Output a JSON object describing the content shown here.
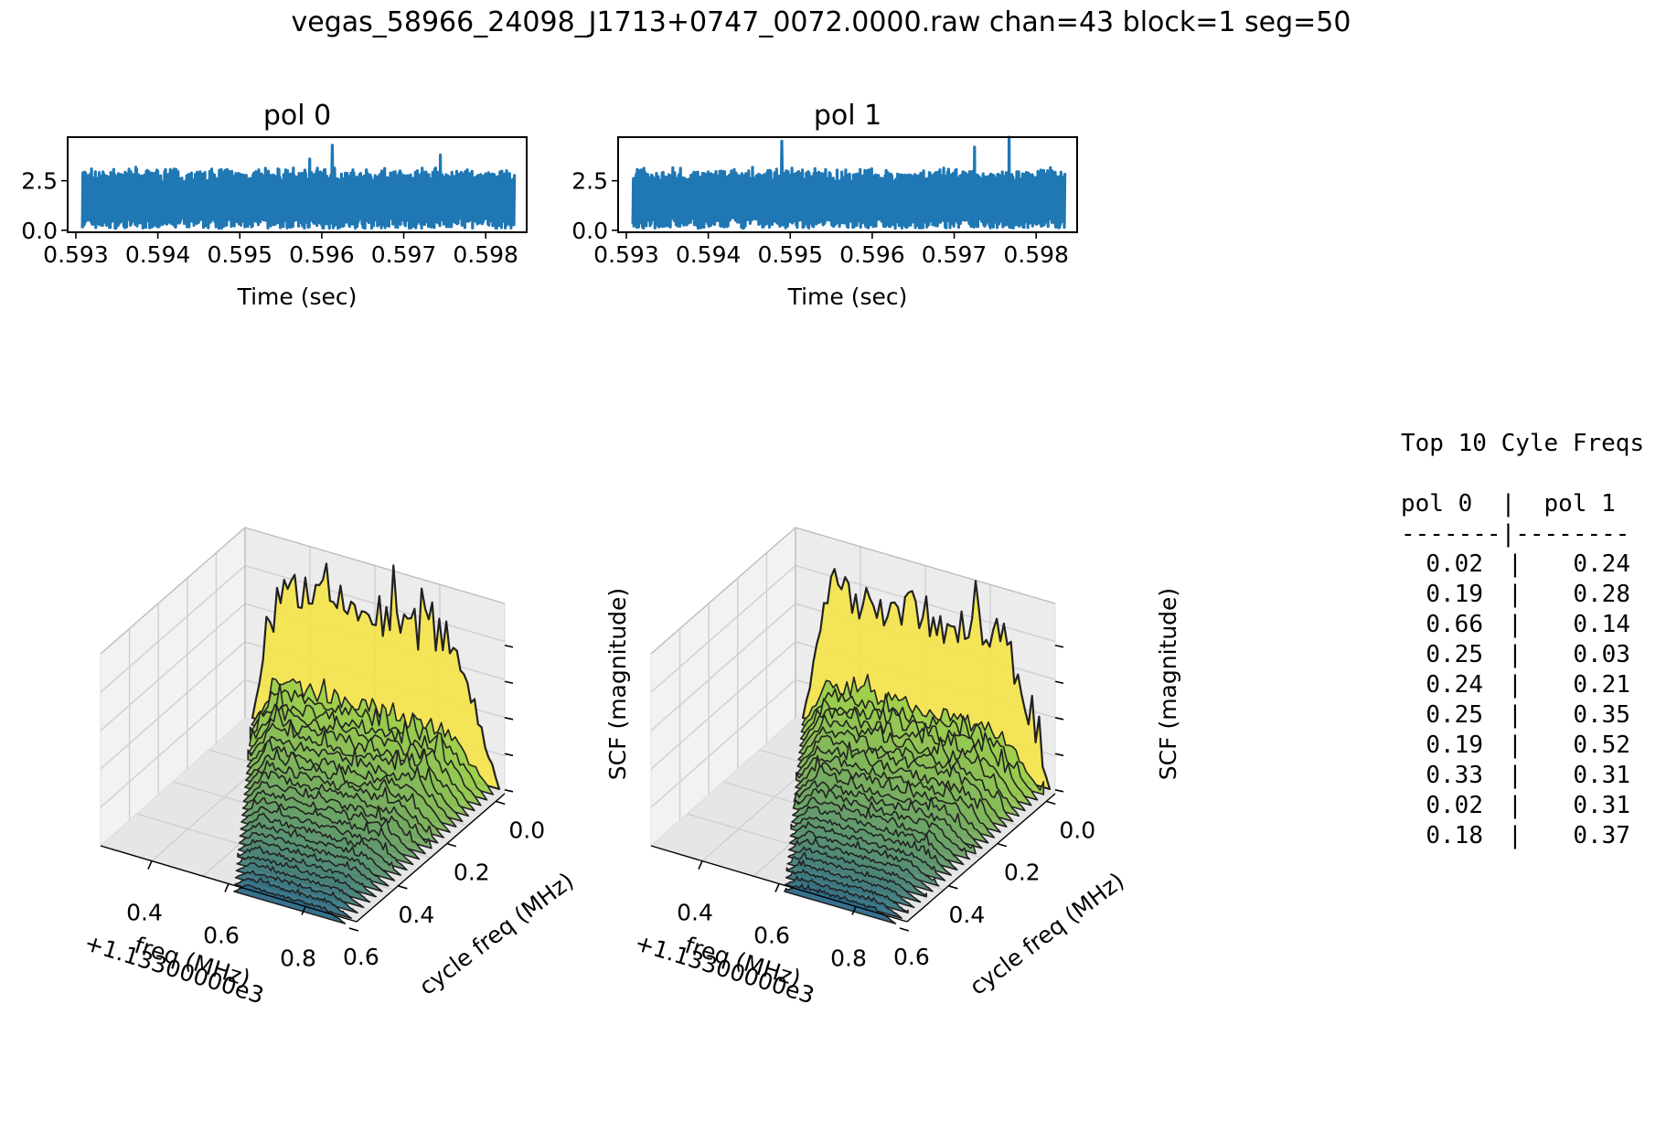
{
  "figure_title": "vegas_58966_24098_J1713+0747_0072.0000.raw chan=43 block=1 seg=50",
  "table": {
    "title": "Top 10 Cyle Freqs",
    "header": "pol 0  |  pol 1",
    "separator": "-------|--------",
    "col_sep": "|"
  },
  "colors": {
    "series": "#1f77b4",
    "surface_top": "#f5e43d",
    "surface_low": "#2c6a8a",
    "edge": "#222222"
  },
  "chart_data": [
    {
      "type": "line",
      "title": "pol 0",
      "xlabel": "Time (sec)",
      "ylabel": "",
      "xticks": [
        "0.593",
        "0.594",
        "0.595",
        "0.596",
        "0.597",
        "0.598"
      ],
      "yticks": [
        "0.0",
        "2.5"
      ],
      "xlim": [
        0.5929,
        0.5985
      ],
      "ylim": [
        -0.1,
        4.7
      ],
      "series": [
        {
          "x_range": [
            0.59308,
            0.59835
          ],
          "baseline": [
            0.1,
            0.7
          ],
          "typical_peak": [
            2.4,
            3.2
          ],
          "spikes": [
            {
              "x": 0.59613,
              "y": 4.3
            },
            {
              "x": 0.59745,
              "y": 3.8
            },
            {
              "x": 0.59585,
              "y": 3.6
            }
          ]
        }
      ]
    },
    {
      "type": "line",
      "title": "pol 1",
      "xlabel": "Time (sec)",
      "ylabel": "",
      "xticks": [
        "0.593",
        "0.594",
        "0.595",
        "0.596",
        "0.597",
        "0.598"
      ],
      "yticks": [
        "0.0",
        "2.5"
      ],
      "xlim": [
        0.5929,
        0.5985
      ],
      "ylim": [
        -0.1,
        4.7
      ],
      "series": [
        {
          "x_range": [
            0.59308,
            0.59835
          ],
          "baseline": [
            0.1,
            0.7
          ],
          "typical_peak": [
            2.4,
            3.2
          ],
          "spikes": [
            {
              "x": 0.5949,
              "y": 4.5
            },
            {
              "x": 0.59767,
              "y": 4.7
            },
            {
              "x": 0.59725,
              "y": 4.2
            }
          ]
        }
      ]
    },
    {
      "type": "surface3d",
      "title": "",
      "xlabel": "freq (MHz)",
      "x_offset_label": "+1.13300000e3",
      "ylabel": "cycle freq (MHz)",
      "zlabel": "SCF (magnitude)",
      "xticks": [
        "0.4",
        "0.6",
        "0.8"
      ],
      "yticks": [
        "0.0",
        "0.2",
        "0.4",
        "0.6"
      ]
    },
    {
      "type": "surface3d",
      "title": "",
      "xlabel": "freq (MHz)",
      "x_offset_label": "+1.13300000e3",
      "ylabel": "cycle freq (MHz)",
      "zlabel": "SCF (magnitude)",
      "xticks": [
        "0.4",
        "0.6",
        "0.8"
      ],
      "yticks": [
        "0.0",
        "0.2",
        "0.4",
        "0.6"
      ]
    },
    {
      "type": "table",
      "columns": [
        "pol 0",
        "pol 1"
      ],
      "rows": [
        [
          "0.02",
          "0.24"
        ],
        [
          "0.19",
          "0.28"
        ],
        [
          "0.66",
          "0.14"
        ],
        [
          "0.25",
          "0.03"
        ],
        [
          "0.24",
          "0.21"
        ],
        [
          "0.25",
          "0.35"
        ],
        [
          "0.19",
          "0.52"
        ],
        [
          "0.33",
          "0.31"
        ],
        [
          "0.02",
          "0.31"
        ],
        [
          "0.18",
          "0.37"
        ]
      ]
    }
  ]
}
